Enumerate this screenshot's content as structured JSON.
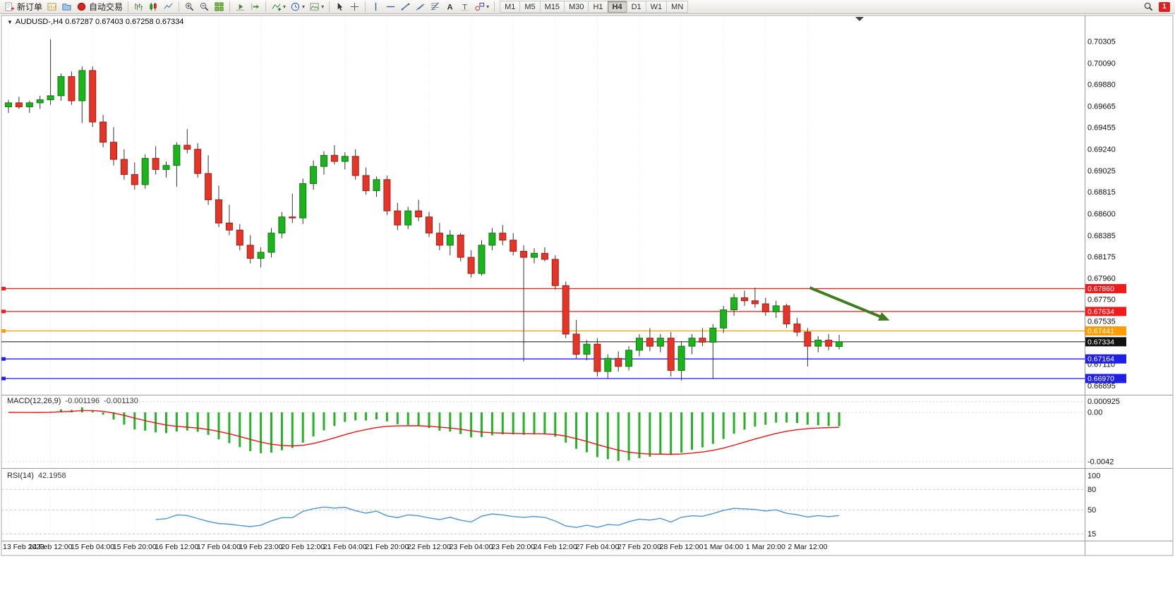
{
  "toolbar": {
    "new_order": {
      "label": "新订单"
    },
    "autotrading": {
      "label": "自动交易"
    },
    "timeframes": [
      "M1",
      "M5",
      "M15",
      "M30",
      "H1",
      "H4",
      "D1",
      "W1",
      "MN"
    ],
    "active_timeframe": "H4",
    "notification_count": "1",
    "icons": {
      "left_group": [
        "new-order-icon",
        "new-chart-icon",
        "profiles-icon",
        "autotrading-icon"
      ],
      "chart_group": [
        "bars-chart-icon",
        "candlestick-chart-icon",
        "line-chart-icon",
        "zoom-in-icon",
        "zoom-out-icon",
        "tile-windows-icon",
        "auto-scroll-icon",
        "chart-shift-icon",
        "indicators-icon",
        "periods-icon",
        "templates-icon"
      ],
      "objects_group": [
        "cursor-icon",
        "crosshair-icon",
        "vertical-line-icon",
        "horizontal-line-icon",
        "trendline-icon",
        "channel-icon",
        "fibonacci-icon",
        "text-icon",
        "label-icon",
        "shapes-icon"
      ],
      "right_group": [
        "search-icon",
        "notification-badge"
      ]
    }
  },
  "chart_data": [
    {
      "type": "candlestick",
      "title": "AUDUSD-,H4 0.67287 0.67403 0.67258 0.67334",
      "symbol": "AUDUSD-",
      "period": "H4",
      "open": "0.67287",
      "high": "0.67403",
      "low": "0.67258",
      "close": "0.67334",
      "ylim": [
        0.6683,
        0.70425
      ],
      "x_label_step_bars": 4,
      "x_labels": [
        "13 Feb 2023",
        "14 Feb 12:00",
        "15 Feb 04:00",
        "15 Feb 20:00",
        "16 Feb 12:00",
        "17 Feb 04:00",
        "19 Feb 23:00",
        "20 Feb 12:00",
        "21 Feb 04:00",
        "21 Feb 20:00",
        "22 Feb 12:00",
        "23 Feb 04:00",
        "23 Feb 20:00",
        "24 Feb 12:00",
        "27 Feb 04:00",
        "27 Feb 20:00",
        "28 Feb 12:00",
        "1 Mar 04:00",
        "1 Mar 20:00",
        "2 Mar 12:00"
      ],
      "y_labels": [
        "0.70305",
        "0.70090",
        "0.69880",
        "0.69665",
        "0.69455",
        "0.69240",
        "0.69025",
        "0.68815",
        "0.68600",
        "0.68385",
        "0.68175",
        "0.67960",
        "0.67750",
        "0.67535",
        "0.67325",
        "0.67110",
        "0.66895"
      ],
      "levels": [
        {
          "price": 0.6786,
          "label": "0.67860",
          "color": "#f21b1b"
        },
        {
          "price": 0.67634,
          "label": "0.67634",
          "color": "#f21b1b"
        },
        {
          "price": 0.67441,
          "label": "0.67441",
          "color": "#ff9c00"
        },
        {
          "price": 0.67334,
          "label": "0.67334",
          "color": "#111111",
          "current": true
        },
        {
          "price": 0.67164,
          "label": "0.67164",
          "color": "#1f1fe8"
        },
        {
          "price": 0.6697,
          "label": "0.66970",
          "color": "#1f1fe8"
        }
      ],
      "arrow": {
        "from_bar": 76.2,
        "from_price": 0.6787,
        "to_bar": 83.8,
        "to_price": 0.67545,
        "color": "#3e7c1f"
      },
      "colors": {
        "up": "#1cb41c",
        "up_border": "#0e7a0e",
        "down": "#e53528",
        "down_border": "#a31e14",
        "wick": "#333333"
      },
      "candles": [
        [
          0.6966,
          0.6973,
          0.696,
          0.697
        ],
        [
          0.697,
          0.6976,
          0.6964,
          0.6966
        ],
        [
          0.6966,
          0.6972,
          0.696,
          0.697
        ],
        [
          0.697,
          0.6977,
          0.6964,
          0.6973
        ],
        [
          0.6973,
          0.7033,
          0.6968,
          0.6977
        ],
        [
          0.6977,
          0.6999,
          0.6972,
          0.6996
        ],
        [
          0.6996,
          0.7001,
          0.6968,
          0.6972
        ],
        [
          0.6972,
          0.7006,
          0.695,
          0.7002
        ],
        [
          0.7002,
          0.7006,
          0.6946,
          0.6951
        ],
        [
          0.6951,
          0.6958,
          0.6926,
          0.6931
        ],
        [
          0.6931,
          0.6946,
          0.6908,
          0.6914
        ],
        [
          0.6914,
          0.6924,
          0.6894,
          0.6899
        ],
        [
          0.6899,
          0.6911,
          0.6884,
          0.6889
        ],
        [
          0.6889,
          0.6919,
          0.6885,
          0.6915
        ],
        [
          0.6915,
          0.6927,
          0.6899,
          0.6904
        ],
        [
          0.6904,
          0.6912,
          0.6896,
          0.6908
        ],
        [
          0.6908,
          0.6931,
          0.6887,
          0.6928
        ],
        [
          0.6928,
          0.6944,
          0.692,
          0.6924
        ],
        [
          0.6924,
          0.693,
          0.6896,
          0.69
        ],
        [
          0.69,
          0.6918,
          0.6869,
          0.6874
        ],
        [
          0.6874,
          0.6888,
          0.6847,
          0.6851
        ],
        [
          0.6851,
          0.6869,
          0.6839,
          0.6844
        ],
        [
          0.6844,
          0.685,
          0.6824,
          0.6829
        ],
        [
          0.6829,
          0.6839,
          0.6811,
          0.6816
        ],
        [
          0.6816,
          0.6827,
          0.6807,
          0.6822
        ],
        [
          0.6822,
          0.6846,
          0.6817,
          0.6841
        ],
        [
          0.6841,
          0.6862,
          0.6836,
          0.6857
        ],
        [
          0.6857,
          0.688,
          0.6851,
          0.6856
        ],
        [
          0.6856,
          0.6895,
          0.685,
          0.689
        ],
        [
          0.689,
          0.6913,
          0.6884,
          0.6907
        ],
        [
          0.6907,
          0.6922,
          0.6899,
          0.6918
        ],
        [
          0.6918,
          0.6928,
          0.6909,
          0.6912
        ],
        [
          0.6912,
          0.6921,
          0.6904,
          0.6917
        ],
        [
          0.6917,
          0.6924,
          0.6894,
          0.6898
        ],
        [
          0.6898,
          0.6906,
          0.6879,
          0.6883
        ],
        [
          0.6883,
          0.6897,
          0.6877,
          0.6894
        ],
        [
          0.6894,
          0.6898,
          0.6859,
          0.6863
        ],
        [
          0.6863,
          0.6871,
          0.6844,
          0.6849
        ],
        [
          0.6849,
          0.6867,
          0.6845,
          0.6863
        ],
        [
          0.6863,
          0.6874,
          0.6853,
          0.6857
        ],
        [
          0.6857,
          0.6862,
          0.6837,
          0.6841
        ],
        [
          0.6841,
          0.6851,
          0.6824,
          0.6829
        ],
        [
          0.6829,
          0.6844,
          0.6819,
          0.6839
        ],
        [
          0.6839,
          0.6841,
          0.6813,
          0.6817
        ],
        [
          0.6817,
          0.6824,
          0.6797,
          0.6801
        ],
        [
          0.6801,
          0.6834,
          0.6799,
          0.6829
        ],
        [
          0.6829,
          0.6846,
          0.6824,
          0.6841
        ],
        [
          0.6841,
          0.6849,
          0.6829,
          0.6834
        ],
        [
          0.6834,
          0.6841,
          0.6819,
          0.6823
        ],
        [
          0.6823,
          0.6829,
          0.6714,
          0.6817
        ],
        [
          0.6817,
          0.6826,
          0.6811,
          0.6821
        ],
        [
          0.6821,
          0.6827,
          0.6813,
          0.6815
        ],
        [
          0.6815,
          0.6819,
          0.6785,
          0.6789
        ],
        [
          0.6789,
          0.6793,
          0.6737,
          0.6741
        ],
        [
          0.6741,
          0.6755,
          0.6717,
          0.6721
        ],
        [
          0.6721,
          0.6735,
          0.6715,
          0.6731
        ],
        [
          0.6731,
          0.6737,
          0.6699,
          0.6704
        ],
        [
          0.6704,
          0.6721,
          0.6697,
          0.6717
        ],
        [
          0.6717,
          0.6724,
          0.6704,
          0.6709
        ],
        [
          0.6709,
          0.6729,
          0.6705,
          0.6725
        ],
        [
          0.6725,
          0.6741,
          0.6719,
          0.6737
        ],
        [
          0.6737,
          0.6747,
          0.6724,
          0.6729
        ],
        [
          0.6729,
          0.6741,
          0.6723,
          0.6737
        ],
        [
          0.6737,
          0.6743,
          0.6699,
          0.6705
        ],
        [
          0.6705,
          0.6734,
          0.6695,
          0.6729
        ],
        [
          0.6729,
          0.6741,
          0.6721,
          0.6737
        ],
        [
          0.6737,
          0.6747,
          0.6729,
          0.6733
        ],
        [
          0.6733,
          0.6751,
          0.6697,
          0.6747
        ],
        [
          0.6747,
          0.6769,
          0.6742,
          0.6765
        ],
        [
          0.6765,
          0.6781,
          0.6759,
          0.6777
        ],
        [
          0.6777,
          0.6784,
          0.6769,
          0.6774
        ],
        [
          0.6774,
          0.6787,
          0.6767,
          0.6771
        ],
        [
          0.6771,
          0.6777,
          0.6759,
          0.6763
        ],
        [
          0.6763,
          0.6774,
          0.6757,
          0.6769
        ],
        [
          0.6769,
          0.6771,
          0.6747,
          0.6751
        ],
        [
          0.6751,
          0.6757,
          0.6739,
          0.6743
        ],
        [
          0.6743,
          0.6747,
          0.6709,
          0.6729
        ],
        [
          0.6729,
          0.6739,
          0.6723,
          0.6735
        ],
        [
          0.6735,
          0.6741,
          0.6725,
          0.6729
        ],
        [
          0.67287,
          0.67403,
          0.67258,
          0.67334
        ]
      ]
    },
    {
      "type": "macd",
      "label": "MACD(12,26,9)",
      "main_value": "-0.001196",
      "signal_value": "-0.001130",
      "params": [
        12,
        26,
        9
      ],
      "y_labels": [
        "0.000925",
        "0.00",
        "-0.0042"
      ],
      "histogram_color": "#26b226",
      "signal_color": "#e01818"
    },
    {
      "type": "rsi",
      "label": "RSI(14)",
      "value": "42.1958",
      "period": 14,
      "levels": [
        100,
        80,
        50,
        15
      ],
      "y_labels": [
        "100",
        "80",
        "50",
        "15"
      ],
      "line_color": "#4f94d4"
    }
  ]
}
